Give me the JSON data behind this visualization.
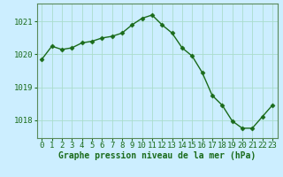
{
  "x": [
    0,
    1,
    2,
    3,
    4,
    5,
    6,
    7,
    8,
    9,
    10,
    11,
    12,
    13,
    14,
    15,
    16,
    17,
    18,
    19,
    20,
    21,
    22,
    23
  ],
  "y": [
    1019.85,
    1020.25,
    1020.15,
    1020.2,
    1020.35,
    1020.4,
    1020.5,
    1020.55,
    1020.65,
    1020.9,
    1021.1,
    1021.2,
    1020.9,
    1020.65,
    1020.2,
    1019.95,
    1019.45,
    1018.75,
    1018.45,
    1017.97,
    1017.75,
    1017.75,
    1018.1,
    1018.45
  ],
  "line_color": "#1a6b1a",
  "marker": "D",
  "marker_size": 2.5,
  "background_color": "#cceeff",
  "grid_color": "#aaddcc",
  "ylabel_ticks": [
    1018,
    1019,
    1020,
    1021
  ],
  "xlabel": "Graphe pression niveau de la mer (hPa)",
  "xlim": [
    -0.5,
    23.5
  ],
  "ylim": [
    1017.45,
    1021.55
  ],
  "tick_label_color": "#1a6b1a",
  "xlabel_color": "#1a6b1a",
  "xlabel_fontsize": 7,
  "tick_fontsize": 6.5,
  "spine_color": "#5a8a5a",
  "linewidth": 1.0
}
